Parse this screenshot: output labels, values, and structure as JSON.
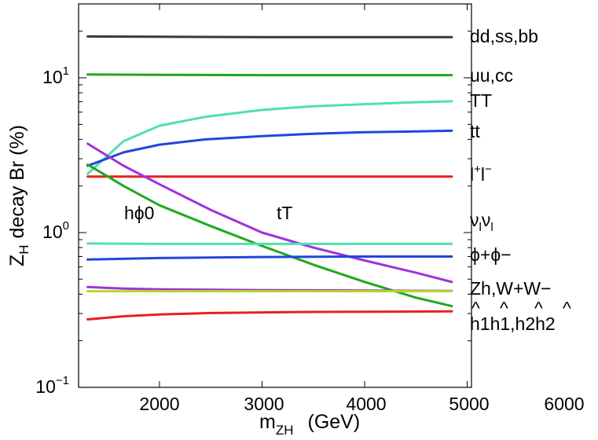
{
  "chart_data": {
    "type": "line",
    "title": "",
    "xlabel": "m_ZH (GeV)",
    "xlabel_main": "m",
    "xlabel_sub": "ZH",
    "xlabel_unit": "(GeV)",
    "ylabel": "Z_H decay Br (%)",
    "ylabel_main": "Z",
    "ylabel_sub": "H",
    "ylabel_rest": "decay Br (%)",
    "xlim": [
      1200,
      6000
    ],
    "ylim": [
      0.1,
      30
    ],
    "y_scale": "log",
    "grid": false,
    "legend": "inline labels at right end of curves",
    "x_ticks": [
      2000,
      3000,
      4000,
      5000,
      6000
    ],
    "x_tick_labels": [
      "2000",
      "3000",
      "4000",
      "5000",
      "6000"
    ],
    "y_ticks": [
      {
        "value": 0.1,
        "base": "10",
        "exp": "−1"
      },
      {
        "value": 1,
        "base": "10",
        "exp": "0"
      },
      {
        "value": 10,
        "base": "10",
        "exp": "1"
      }
    ],
    "series": [
      {
        "label": "dd,ss,bb",
        "color": "#3a3a3a",
        "x": [
          1300,
          2000,
          3000,
          4000,
          4850
        ],
        "y": [
          18.5,
          18.4,
          18.3,
          18.3,
          18.3
        ]
      },
      {
        "label": "uu,cc",
        "color": "#1fa81f",
        "x": [
          1300,
          2000,
          3000,
          4000,
          4850
        ],
        "y": [
          10.5,
          10.45,
          10.4,
          10.4,
          10.4
        ]
      },
      {
        "label": "TT",
        "color": "#4fe0b0",
        "x": [
          1300,
          1650,
          2000,
          2450,
          3000,
          3500,
          4000,
          4500,
          4850
        ],
        "y": [
          2.4,
          3.9,
          4.9,
          5.6,
          6.2,
          6.55,
          6.75,
          6.95,
          7.05
        ]
      },
      {
        "label": "tt",
        "color": "#2146d9",
        "x": [
          1300,
          1650,
          2000,
          2450,
          3000,
          3500,
          4000,
          4500,
          4850
        ],
        "y": [
          2.7,
          3.3,
          3.7,
          4.0,
          4.2,
          4.35,
          4.45,
          4.5,
          4.55
        ]
      },
      {
        "label": "l+l−",
        "label_main": "l",
        "label_sup1": "+",
        "label_mid": "l",
        "label_sup2": "−",
        "color": "#e82020",
        "x": [
          1300,
          2000,
          3000,
          4000,
          4850
        ],
        "y": [
          2.3,
          2.3,
          2.3,
          2.3,
          2.3
        ]
      },
      {
        "label": "νlνl",
        "label_a": "ν",
        "label_sub_a": "l",
        "label_b": "ν",
        "label_sub_b": "l",
        "color": "#a030e0",
        "x": [
          1300,
          1650,
          2000,
          2500,
          3000,
          3500,
          4000,
          4500,
          4850
        ],
        "y": [
          3.75,
          2.7,
          2.05,
          1.4,
          1.0,
          0.8,
          0.66,
          0.55,
          0.48
        ]
      },
      {
        "label": "hϕ0 (green)",
        "color": "#1fa81f",
        "x": [
          1300,
          1650,
          2000,
          2500,
          3000,
          3500,
          4000,
          4500,
          4850
        ],
        "y": [
          2.75,
          2.0,
          1.5,
          1.1,
          0.82,
          0.62,
          0.48,
          0.38,
          0.335
        ]
      },
      {
        "label": "ϕ+ϕ− (cyan)",
        "color": "#4fe0b0",
        "x": [
          1300,
          2000,
          3000,
          4000,
          4850
        ],
        "y": [
          0.85,
          0.845,
          0.845,
          0.845,
          0.845
        ]
      },
      {
        "label": "ϕ+ϕ−",
        "color": "#2146d9",
        "x": [
          1300,
          2000,
          3000,
          4000,
          4850
        ],
        "y": [
          0.67,
          0.685,
          0.695,
          0.7,
          0.7
        ]
      },
      {
        "label": "Zh,W+W− (purple)",
        "color": "#a030e0",
        "x": [
          1300,
          1650,
          2000,
          3000,
          4000,
          4850
        ],
        "y": [
          0.445,
          0.435,
          0.43,
          0.425,
          0.422,
          0.42
        ]
      },
      {
        "label": "Zh,W+W−",
        "color": "#b6d825",
        "x": [
          1300,
          2000,
          3000,
          4000,
          4850
        ],
        "y": [
          0.418,
          0.418,
          0.418,
          0.418,
          0.418
        ]
      },
      {
        "label": "h1h1,h2h2",
        "color": "#e82020",
        "x": [
          1300,
          1650,
          2000,
          2500,
          3000,
          3500,
          4000,
          4500,
          4850
        ],
        "y": [
          0.275,
          0.288,
          0.296,
          0.302,
          0.305,
          0.307,
          0.308,
          0.309,
          0.31
        ]
      }
    ],
    "right_labels": {
      "ddssbb": "dd,ss,bb",
      "uucc": "uu,cc",
      "TT": "TT",
      "tt": "tt",
      "ll_main": "l",
      "ll_sup1": "+",
      "ll_mid": "l",
      "ll_sup2": "−",
      "nu_a": "ν",
      "nu_sub_a": "l",
      "nu_b": "ν",
      "nu_sub_b": "l",
      "phiphi": "ϕ+ϕ−",
      "zhww": "Zh,W+W−",
      "hhat": "h1h1,h2h2",
      "hat_mark": "^"
    },
    "annotations": {
      "hphi0": "hϕ0",
      "tT": "tT"
    }
  }
}
